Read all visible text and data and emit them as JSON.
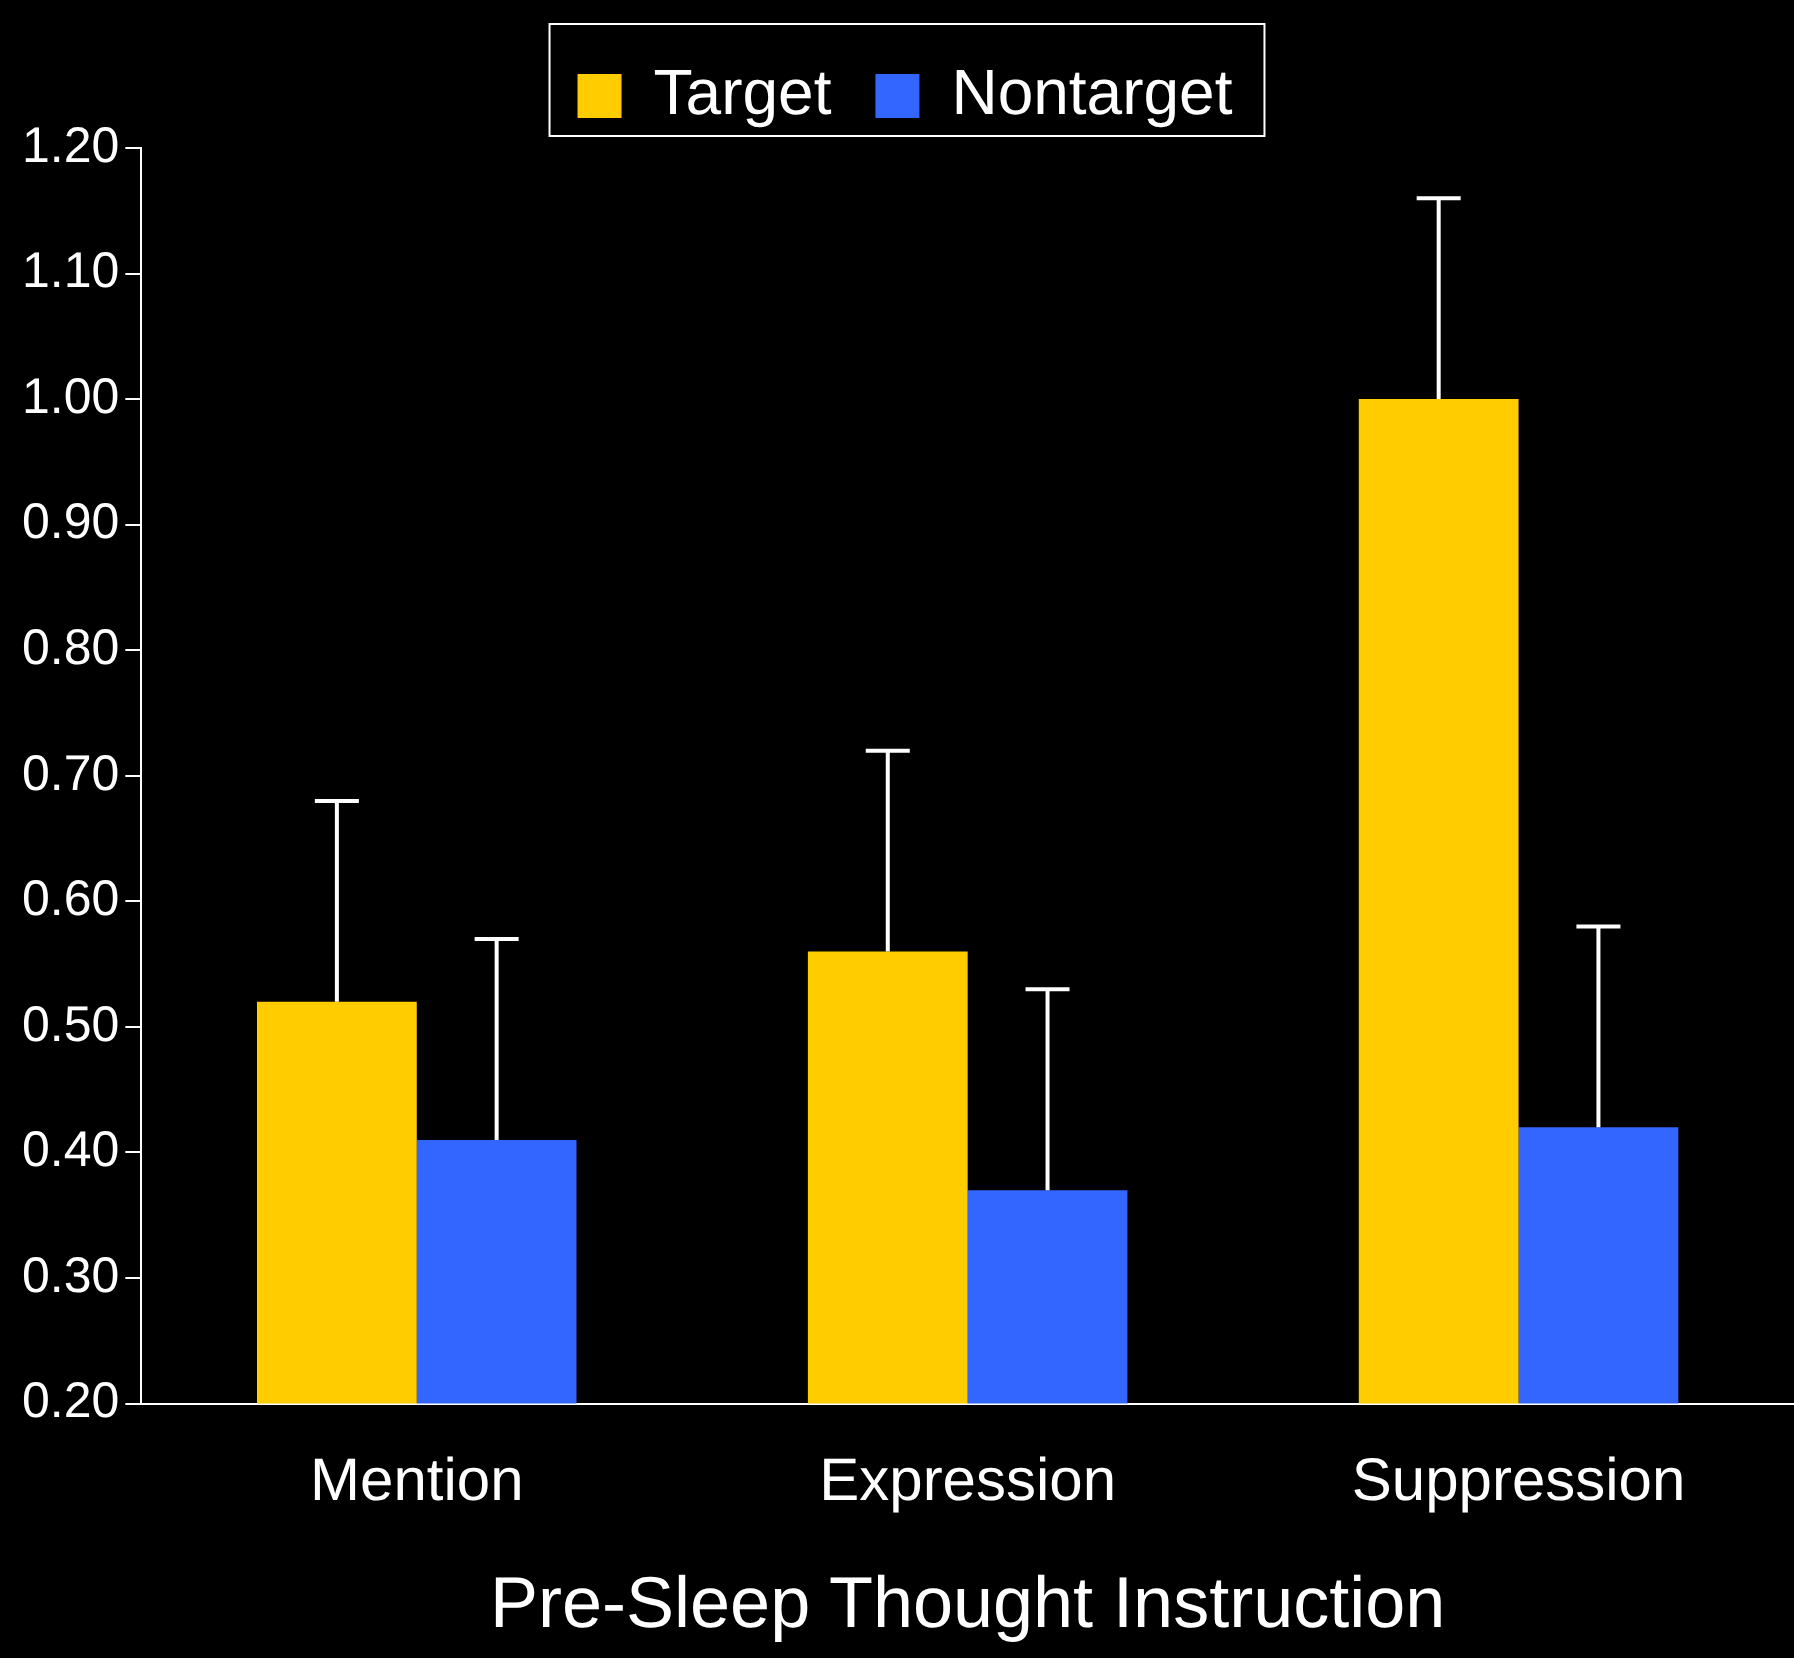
{
  "chart_data": {
    "type": "bar",
    "xlabel": "Pre-Sleep Thought Instruction",
    "categories": [
      "Mention",
      "Expression",
      "Suppression"
    ],
    "series": [
      {
        "name": "Target",
        "color": "#ffcc00",
        "values": [
          0.52,
          0.56,
          1.0
        ],
        "errors": [
          [
            0.52,
            0.68
          ],
          [
            0.56,
            0.72
          ],
          [
            1.0,
            1.16
          ]
        ]
      },
      {
        "name": "Nontarget",
        "color": "#3366ff",
        "values": [
          0.41,
          0.37,
          0.42
        ],
        "errors": [
          [
            0.41,
            0.57
          ],
          [
            0.37,
            0.53
          ],
          [
            0.42,
            0.58
          ]
        ]
      }
    ],
    "ylim": [
      0.2,
      1.2
    ],
    "yticks": [
      {
        "value": 0.2,
        "label": "0.20"
      },
      {
        "value": 0.3,
        "label": "0.30"
      },
      {
        "value": 0.4,
        "label": "0.40"
      },
      {
        "value": 0.5,
        "label": "0.50"
      },
      {
        "value": 0.6,
        "label": "0.60"
      },
      {
        "value": 0.7,
        "label": "0.70"
      },
      {
        "value": 0.8,
        "label": "0.80"
      },
      {
        "value": 0.9,
        "label": "0.90"
      },
      {
        "value": 1.0,
        "label": "1.00"
      },
      {
        "value": 1.1,
        "label": "1.10"
      },
      {
        "value": 1.2,
        "label": "1.20"
      }
    ],
    "legend": "top",
    "grid": false
  }
}
